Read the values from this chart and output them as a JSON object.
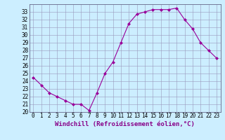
{
  "x": [
    0,
    1,
    2,
    3,
    4,
    5,
    6,
    7,
    8,
    9,
    10,
    11,
    12,
    13,
    14,
    15,
    16,
    17,
    18,
    19,
    20,
    21,
    22,
    23
  ],
  "y": [
    24.5,
    23.5,
    22.5,
    22.0,
    21.5,
    21.0,
    21.0,
    20.2,
    22.5,
    25.0,
    26.5,
    29.0,
    31.5,
    32.7,
    33.0,
    33.3,
    33.3,
    33.3,
    33.5,
    32.0,
    30.8,
    29.0,
    28.0,
    27.0
  ],
  "line_color": "#990099",
  "marker": "D",
  "marker_size": 2,
  "bg_color": "#cceeff",
  "grid_color": "#9999bb",
  "xlabel": "Windchill (Refroidissement éolien,°C)",
  "xlabel_color": "#880088",
  "xlim": [
    -0.5,
    23.5
  ],
  "ylim": [
    20,
    34
  ],
  "yticks": [
    20,
    21,
    22,
    23,
    24,
    25,
    26,
    27,
    28,
    29,
    30,
    31,
    32,
    33
  ],
  "xtick_labels": [
    "0",
    "1",
    "2",
    "3",
    "4",
    "5",
    "6",
    "7",
    "8",
    "9",
    "10",
    "11",
    "12",
    "13",
    "14",
    "15",
    "16",
    "17",
    "18",
    "19",
    "20",
    "21",
    "22",
    "23"
  ],
  "tick_fontsize": 5.5,
  "xlabel_fontsize": 6.5
}
